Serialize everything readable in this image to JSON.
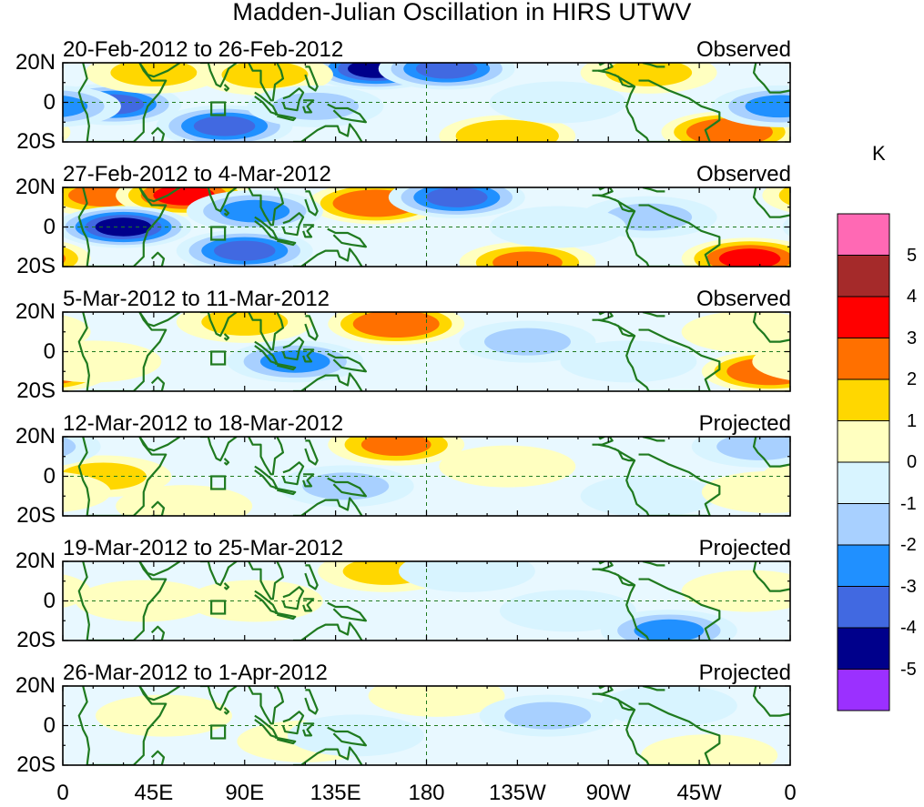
{
  "title": "Madden-Julian Oscillation in HIRS UTWV",
  "panels": [
    {
      "period": "20-Feb-2012 to 26-Feb-2012",
      "status": "Observed"
    },
    {
      "period": "27-Feb-2012 to 4-Mar-2012",
      "status": "Observed"
    },
    {
      "period": "5-Mar-2012 to 11-Mar-2012",
      "status": "Observed"
    },
    {
      "period": "12-Mar-2012 to 18-Mar-2012",
      "status": "Projected"
    },
    {
      "period": "19-Mar-2012 to 25-Mar-2012",
      "status": "Projected"
    },
    {
      "period": "26-Mar-2012 to 1-Apr-2012",
      "status": "Projected"
    }
  ],
  "lat_ticks": [
    "20N",
    "0",
    "20S"
  ],
  "lon_ticks": [
    "0",
    "45E",
    "90E",
    "135E",
    "180",
    "135W",
    "90W",
    "45W",
    "0"
  ],
  "colorbar": {
    "unit": "K",
    "ticks": [
      "5",
      "4",
      "3",
      "2",
      "1",
      "0",
      "-1",
      "-2",
      "-3",
      "-4",
      "-5"
    ],
    "colors": [
      "#ff69b4",
      "#a52a2a",
      "#ff0000",
      "#ff7000",
      "#ffd700",
      "#ffffc0",
      "#d8f4ff",
      "#a8d0ff",
      "#2090ff",
      "#4169e1",
      "#00008b",
      "#9b30ff"
    ]
  },
  "anomalies": [
    [
      {
        "lon": 155,
        "lat": 17,
        "value": -4.5
      },
      {
        "lon": 190,
        "lat": 17,
        "value": -4
      },
      {
        "lon": 25,
        "lat": -1,
        "value": -4
      },
      {
        "lon": 80,
        "lat": -12,
        "value": -4
      },
      {
        "lon": 45,
        "lat": 15,
        "value": 2
      },
      {
        "lon": 100,
        "lat": 14,
        "value": 2
      },
      {
        "lon": 290,
        "lat": 15,
        "value": 2
      },
      {
        "lon": 330,
        "lat": -15,
        "value": 3.5
      },
      {
        "lon": 220,
        "lat": -17,
        "value": 2.5
      },
      {
        "lon": 125,
        "lat": -2,
        "value": -1.5
      },
      {
        "lon": 245,
        "lat": 0,
        "value": -1
      },
      {
        "lon": 355,
        "lat": -2,
        "value": -3
      }
    ],
    [
      {
        "lon": 20,
        "lat": 16,
        "value": 3
      },
      {
        "lon": 60,
        "lat": 16,
        "value": 4
      },
      {
        "lon": 155,
        "lat": 12,
        "value": 3.5
      },
      {
        "lon": 195,
        "lat": 15,
        "value": -4
      },
      {
        "lon": 30,
        "lat": 0,
        "value": -4.5
      },
      {
        "lon": 90,
        "lat": -12,
        "value": -4
      },
      {
        "lon": 230,
        "lat": -18,
        "value": 3
      },
      {
        "lon": 340,
        "lat": -16,
        "value": 4
      },
      {
        "lon": 95,
        "lat": 8,
        "value": -2.5
      },
      {
        "lon": 290,
        "lat": 5,
        "value": -2
      },
      {
        "lon": 245,
        "lat": 0,
        "value": -1
      }
    ],
    [
      {
        "lon": 165,
        "lat": 14,
        "value": 3.5
      },
      {
        "lon": 90,
        "lat": 15,
        "value": 2
      },
      {
        "lon": 350,
        "lat": -10,
        "value": 3.5
      },
      {
        "lon": 340,
        "lat": 10,
        "value": 1.5
      },
      {
        "lon": 115,
        "lat": -5,
        "value": -3
      },
      {
        "lon": 230,
        "lat": 5,
        "value": -1.5
      },
      {
        "lon": 15,
        "lat": -5,
        "value": 1.5
      },
      {
        "lon": 280,
        "lat": -5,
        "value": -1
      }
    ],
    [
      {
        "lon": 165,
        "lat": 16,
        "value": 3
      },
      {
        "lon": 20,
        "lat": 0,
        "value": 2
      },
      {
        "lon": 60,
        "lat": -15,
        "value": 1.5
      },
      {
        "lon": 140,
        "lat": -5,
        "value": -2
      },
      {
        "lon": 220,
        "lat": 5,
        "value": 1
      },
      {
        "lon": 290,
        "lat": -10,
        "value": -1
      },
      {
        "lon": 345,
        "lat": 15,
        "value": -2
      },
      {
        "lon": 350,
        "lat": -8,
        "value": 1.5
      }
    ],
    [
      {
        "lon": 160,
        "lat": 15,
        "value": 2
      },
      {
        "lon": 40,
        "lat": 0,
        "value": 1.5
      },
      {
        "lon": 95,
        "lat": 0,
        "value": 1
      },
      {
        "lon": 300,
        "lat": -15,
        "value": -2.5
      },
      {
        "lon": 200,
        "lat": 15,
        "value": -1
      },
      {
        "lon": 250,
        "lat": -5,
        "value": -1
      },
      {
        "lon": 340,
        "lat": 5,
        "value": 1
      }
    ],
    [
      {
        "lon": 185,
        "lat": 15,
        "value": 1.5
      },
      {
        "lon": 120,
        "lat": -8,
        "value": 1
      },
      {
        "lon": 240,
        "lat": 5,
        "value": -1.5
      },
      {
        "lon": 50,
        "lat": 5,
        "value": 1
      },
      {
        "lon": 300,
        "lat": 10,
        "value": -1
      },
      {
        "lon": 320,
        "lat": -15,
        "value": 1
      },
      {
        "lon": 145,
        "lat": -5,
        "value": -1
      }
    ]
  ]
}
